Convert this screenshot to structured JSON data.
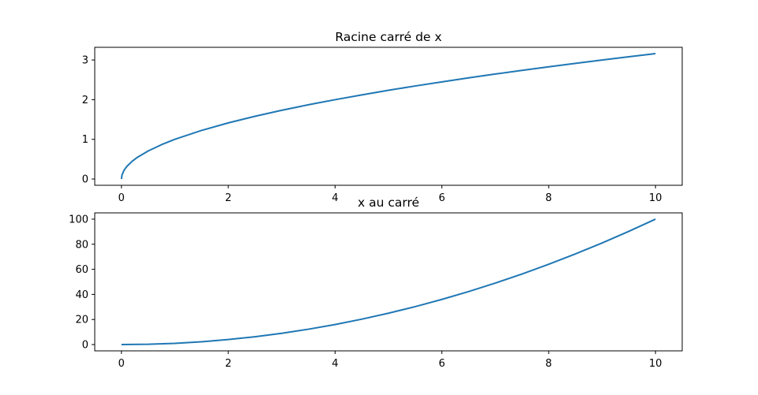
{
  "chart_data": [
    {
      "type": "line",
      "title": "Racine carré de x",
      "xlabel": "",
      "ylabel": "",
      "xlim": [
        -0.5,
        10.5
      ],
      "ylim": [
        -0.158,
        3.32
      ],
      "xticks": [
        0,
        2,
        4,
        6,
        8,
        10
      ],
      "yticks": [
        0,
        1,
        2,
        3
      ],
      "grid": false,
      "series": [
        {
          "color": "#1f77b4",
          "x": [
            0,
            0.01,
            0.05,
            0.1,
            0.2,
            0.3,
            0.5,
            0.75,
            1,
            1.5,
            2,
            2.5,
            3,
            3.5,
            4,
            4.5,
            5,
            5.5,
            6,
            6.5,
            7,
            7.5,
            8,
            8.5,
            9,
            9.5,
            10
          ],
          "y": [
            0,
            0.1,
            0.224,
            0.316,
            0.447,
            0.548,
            0.707,
            0.866,
            1,
            1.225,
            1.414,
            1.581,
            1.732,
            1.871,
            2,
            2.121,
            2.236,
            2.345,
            2.449,
            2.55,
            2.646,
            2.739,
            2.828,
            2.915,
            3,
            3.082,
            3.162
          ]
        }
      ]
    },
    {
      "type": "line",
      "title": "x au carré",
      "xlabel": "",
      "ylabel": "",
      "xlim": [
        -0.5,
        10.5
      ],
      "ylim": [
        -5,
        105
      ],
      "xticks": [
        0,
        2,
        4,
        6,
        8,
        10
      ],
      "yticks": [
        0,
        20,
        40,
        60,
        80,
        100
      ],
      "grid": false,
      "series": [
        {
          "color": "#1f77b4",
          "x": [
            0,
            0.5,
            1,
            1.5,
            2,
            2.5,
            3,
            3.5,
            4,
            4.5,
            5,
            5.5,
            6,
            6.5,
            7,
            7.5,
            8,
            8.5,
            9,
            9.5,
            10
          ],
          "y": [
            0,
            0.25,
            1,
            2.25,
            4,
            6.25,
            9,
            12.25,
            16,
            20.25,
            25,
            30.25,
            36,
            42.25,
            49,
            56.25,
            64,
            72.25,
            81,
            90.25,
            100
          ]
        }
      ]
    }
  ]
}
